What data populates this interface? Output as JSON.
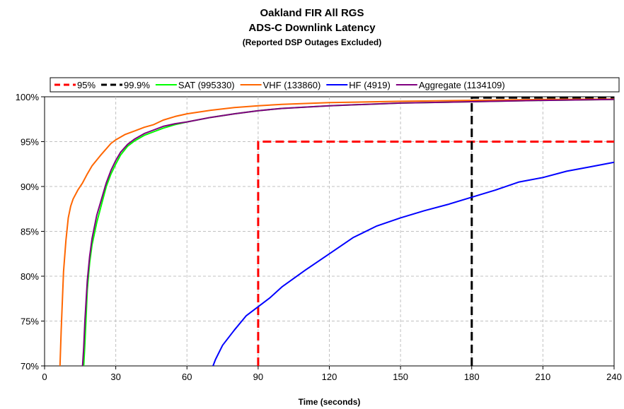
{
  "chart_data": {
    "type": "line",
    "title": "Oakland FIR All RGS",
    "subtitle": "ADS-C Downlink Latency",
    "note": "(Reported DSP Outages Excluded)",
    "xlabel": "Time (seconds)",
    "ylabel": "",
    "xlim": [
      0,
      240
    ],
    "ylim": [
      70,
      100
    ],
    "x_ticks": [
      "0",
      "30",
      "60",
      "90",
      "120",
      "150",
      "180",
      "210",
      "240"
    ],
    "y_ticks": [
      "70%",
      "75%",
      "80%",
      "85%",
      "90%",
      "95%",
      "100%"
    ],
    "grid": true,
    "legend_position": "top",
    "series": [
      {
        "name": "95%",
        "color": "#ff0000",
        "dash": true,
        "x": [
          90,
          90,
          240
        ],
        "y": [
          70,
          95,
          95
        ]
      },
      {
        "name": "99.9%",
        "color": "#000000",
        "dash": true,
        "x": [
          180,
          180,
          240
        ],
        "y": [
          70,
          99.9,
          99.9
        ]
      },
      {
        "name": "SAT (995330)",
        "color": "#00ff00",
        "x": [
          16.5,
          17,
          18,
          19,
          20,
          22,
          24,
          26,
          28,
          30,
          32,
          35,
          38,
          42,
          46,
          50,
          55,
          60,
          70,
          80,
          90,
          100,
          120,
          150,
          180,
          210,
          240
        ],
        "y": [
          70,
          72.5,
          78.5,
          81.5,
          83.5,
          86,
          88,
          90,
          91.4,
          92.5,
          93.5,
          94.5,
          95.1,
          95.7,
          96.1,
          96.5,
          96.9,
          97.2,
          97.7,
          98.1,
          98.45,
          98.7,
          99.0,
          99.3,
          99.45,
          99.6,
          99.7
        ]
      },
      {
        "name": "VHF (133860)",
        "color": "#ff6600",
        "x": [
          6.5,
          7,
          8,
          9,
          10,
          11,
          12,
          14,
          16,
          18,
          20,
          24,
          28,
          30,
          34,
          38,
          42,
          46,
          50,
          55,
          60,
          70,
          80,
          90,
          100,
          120,
          150,
          180,
          210,
          240
        ],
        "y": [
          70,
          74,
          80.5,
          84,
          86.5,
          87.8,
          88.6,
          89.6,
          90.4,
          91.4,
          92.3,
          93.6,
          94.8,
          95.2,
          95.8,
          96.2,
          96.6,
          96.9,
          97.4,
          97.8,
          98.1,
          98.5,
          98.8,
          99.0,
          99.15,
          99.35,
          99.5,
          99.6,
          99.7,
          99.75
        ]
      },
      {
        "name": "HF (4919)",
        "color": "#0000ff",
        "x": [
          71,
          72,
          75,
          80,
          85,
          90,
          95,
          100,
          110,
          120,
          130,
          140,
          150,
          160,
          170,
          180,
          190,
          200,
          210,
          220,
          230,
          240
        ],
        "y": [
          70,
          70.7,
          72.3,
          74,
          75.6,
          76.6,
          77.6,
          78.8,
          80.7,
          82.5,
          84.3,
          85.6,
          86.5,
          87.3,
          88.0,
          88.8,
          89.6,
          90.5,
          91.0,
          91.7,
          92.2,
          92.7
        ]
      },
      {
        "name": "Aggregate (1134109)",
        "color": "#800080",
        "x": [
          16,
          16.5,
          17,
          18,
          19,
          20,
          22,
          24,
          26,
          28,
          30,
          32,
          35,
          38,
          42,
          46,
          50,
          55,
          60,
          70,
          80,
          90,
          100,
          120,
          150,
          180,
          210,
          240
        ],
        "y": [
          70,
          72,
          75,
          79.5,
          82.2,
          84.2,
          86.8,
          88.6,
          90.4,
          91.8,
          92.9,
          93.8,
          94.7,
          95.3,
          95.9,
          96.3,
          96.7,
          97.0,
          97.2,
          97.7,
          98.1,
          98.45,
          98.7,
          99.0,
          99.3,
          99.45,
          99.6,
          99.7
        ]
      }
    ]
  }
}
